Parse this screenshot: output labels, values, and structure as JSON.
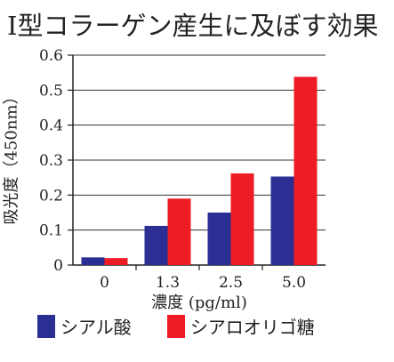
{
  "chart_data": {
    "type": "bar",
    "title": "I型コラーゲン産生に及ぼす効果",
    "ylabel": "吸光度（450nm）",
    "xlabel": "濃度 (pg/ml)",
    "categories": [
      "0",
      "1.3",
      "2.5",
      "5.0"
    ],
    "ylim": [
      0,
      0.6
    ],
    "yticks": [
      "0",
      "0.1",
      "0.2",
      "0.3",
      "0.4",
      "0.5",
      "0.6"
    ],
    "grid": true,
    "legend_position": "bottom",
    "series": [
      {
        "name": "シアル酸",
        "color": "#2b2f94",
        "values": [
          0.022,
          0.112,
          0.15,
          0.253
        ]
      },
      {
        "name": "シアロオリゴ糖",
        "color": "#ee1c25",
        "values": [
          0.02,
          0.19,
          0.262,
          0.538
        ]
      }
    ]
  }
}
